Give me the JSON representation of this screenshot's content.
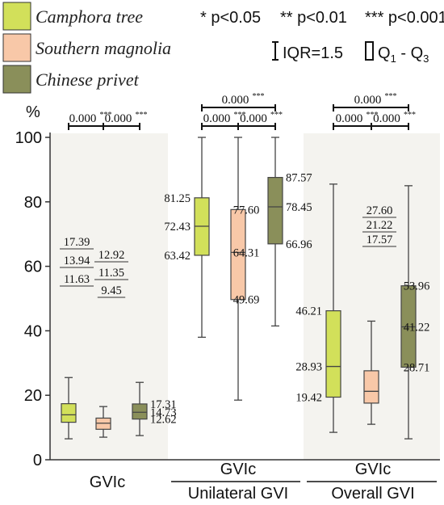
{
  "legend": {
    "items": [
      {
        "label": "Camphora tree",
        "color": "#d2e05a"
      },
      {
        "label": "Southern magnolia",
        "color": "#f8c8a8"
      },
      {
        "label": "Chinese privet",
        "color": "#8a8f5a"
      }
    ],
    "significance": {
      "p1": "* p<0.05",
      "p2": "** p<0.01",
      "p3": "*** p<0.001"
    },
    "whisker": "IQR=1.5",
    "box": "Q",
    "box_sub1": "1",
    "box_dash": " - Q",
    "box_sub2": "3"
  },
  "chart_data": {
    "type": "box",
    "y_unit": "%",
    "ylim": [
      0,
      100
    ],
    "yticks": [
      0,
      20,
      40,
      60,
      80,
      100
    ],
    "series": [
      {
        "name": "Camphora tree",
        "color": "#d2e05a"
      },
      {
        "name": "Southern magnolia",
        "color": "#f8c8a8"
      },
      {
        "name": "Chinese privet",
        "color": "#8a8f5a"
      }
    ],
    "groups": [
      {
        "label": "GVIc",
        "sublabel": "",
        "shaded": true,
        "boxes": [
          {
            "min": 6.5,
            "q1": 11.63,
            "median": 13.94,
            "q3": 17.39,
            "max": 25.5,
            "labels": {
              "q3": "17.39",
              "median": "13.94",
              "q1": "11.63"
            }
          },
          {
            "min": 7.0,
            "q1": 9.45,
            "median": 11.35,
            "q3": 12.92,
            "max": 16.5,
            "labels": {
              "q3": "12.92",
              "median": "11.35",
              "q1": "9.45"
            }
          },
          {
            "min": 7.5,
            "q1": 12.62,
            "median": 14.73,
            "q3": 17.31,
            "max": 24.0,
            "labels": {
              "q3": "17.31",
              "median": "14.73",
              "q1": "12.62"
            }
          }
        ],
        "comparisons": [
          {
            "from": 0,
            "to": 1,
            "label": "0.000",
            "stars": "***"
          },
          {
            "from": 1,
            "to": 2,
            "label": "0.000",
            "stars": "***"
          }
        ]
      },
      {
        "label": "GVIc",
        "sublabel": "Unilateral GVI",
        "shaded": false,
        "boxes": [
          {
            "min": 38.0,
            "q1": 63.42,
            "median": 72.43,
            "q3": 81.25,
            "max": 100,
            "labels": {
              "q3": "81.25",
              "median": "72.43",
              "q1": "63.42"
            }
          },
          {
            "min": 18.5,
            "q1": 49.69,
            "median": 64.31,
            "q3": 77.6,
            "max": 100,
            "labels": {
              "q3": "77.60",
              "median": "64.31",
              "q1": "49.69"
            }
          },
          {
            "min": 41.5,
            "q1": 66.96,
            "median": 78.45,
            "q3": 87.57,
            "max": 100,
            "labels": {
              "q3": "87.57",
              "median": "78.45",
              "q1": "66.96"
            }
          }
        ],
        "comparisons": [
          {
            "from": 0,
            "to": 2,
            "label": "0.000",
            "stars": "***"
          },
          {
            "from": 0,
            "to": 1,
            "label": "0.000",
            "stars": "***"
          },
          {
            "from": 1,
            "to": 2,
            "label": "0.000",
            "stars": "***"
          }
        ]
      },
      {
        "label": "GVIc",
        "sublabel": "Overall GVI",
        "shaded": true,
        "boxes": [
          {
            "min": 8.5,
            "q1": 19.42,
            "median": 28.93,
            "q3": 46.21,
            "max": 85.5,
            "labels": {
              "q3": "46.21",
              "median": "28.93",
              "q1": "19.42"
            }
          },
          {
            "min": 11.0,
            "q1": 17.57,
            "median": 21.22,
            "q3": 27.6,
            "max": 43.0,
            "labels": {
              "q3": "27.60",
              "median": "21.22",
              "q1": "17.57"
            }
          },
          {
            "min": 6.5,
            "q1": 28.71,
            "median": 41.22,
            "q3": 53.96,
            "max": 85.0,
            "labels": {
              "q3": "53.96",
              "median": "41.22",
              "q1": "28.71"
            }
          }
        ],
        "comparisons": [
          {
            "from": 0,
            "to": 2,
            "label": "0.000",
            "stars": "***"
          },
          {
            "from": 0,
            "to": 1,
            "label": "0.000",
            "stars": "***"
          },
          {
            "from": 1,
            "to": 2,
            "label": "0.000",
            "stars": "***"
          }
        ]
      }
    ]
  }
}
